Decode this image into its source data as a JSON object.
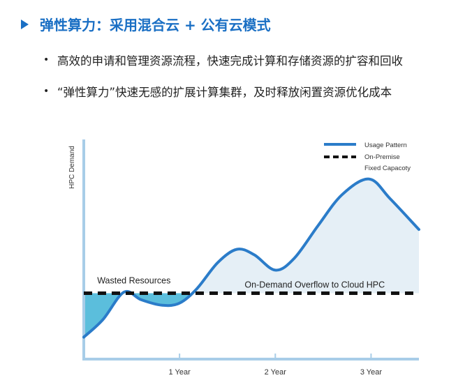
{
  "header": {
    "title": "弹性算力：采用混合云 + 公有云模式"
  },
  "bullets": [
    {
      "marker": "•",
      "text": "高效的申请和管理资源流程，快速完成计算和存储资源的扩容和回收"
    },
    {
      "marker": "•",
      "text": "“弹性算力”快速无感的扩展计算集群，及时释放闲置资源优化成本"
    }
  ],
  "chart_data": {
    "type": "area",
    "title": "",
    "xlabel": "",
    "ylabel": "HPC Demand",
    "x_ticks": [
      {
        "value": 1,
        "label": "1 Year"
      },
      {
        "value": 2,
        "label": "2 Year"
      },
      {
        "value": 3,
        "label": "3 Year"
      }
    ],
    "xlim": [
      0,
      3.5
    ],
    "ylim": [
      0,
      10
    ],
    "grid": false,
    "legend_position": "top-right",
    "legend": [
      {
        "label": "Usage Pattern",
        "style": "solid",
        "color": "#2b7cc9"
      },
      {
        "label": "On-Premise",
        "style": "dashed",
        "color": "#111111"
      },
      {
        "label": "Fixed Capacoty",
        "style": "dashed",
        "color": "#111111"
      }
    ],
    "series": [
      {
        "name": "Usage Pattern",
        "color": "#2b7cc9",
        "x": [
          0,
          0.2,
          0.42,
          0.6,
          0.82,
          1.0,
          1.18,
          1.4,
          1.6,
          1.78,
          2.0,
          2.2,
          2.45,
          2.7,
          2.98,
          3.2,
          3.5
        ],
        "y": [
          1.0,
          1.8,
          3.05,
          2.7,
          2.45,
          2.55,
          3.2,
          4.4,
          5.0,
          4.75,
          4.05,
          4.6,
          6.1,
          7.5,
          8.2,
          7.3,
          5.9
        ]
      }
    ],
    "fixed_capacity": 3.0,
    "annotations": [
      {
        "text": "Wasted Resources",
        "x": 0.14,
        "y": 3.45
      },
      {
        "text": "On-Demand Overflow to Cloud HPC",
        "x": 1.68,
        "y": 3.25
      }
    ],
    "colors": {
      "axis": "#a8cde8",
      "wasted_fill": "#5bbedc",
      "overflow_fill": "#e5eff6",
      "capacity_line": "#111111"
    }
  }
}
